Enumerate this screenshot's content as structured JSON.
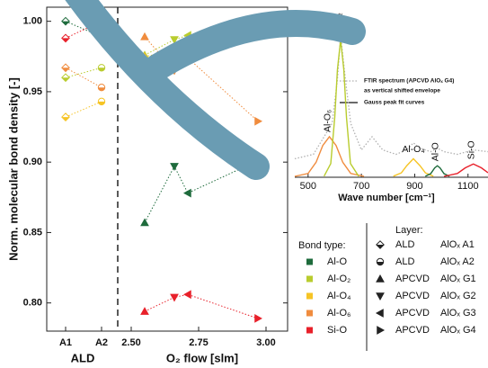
{
  "chart_data": [
    {
      "type": "scatter",
      "ylabel": "Norm. molecular bond density [-]",
      "xlabel": "ALD",
      "categories": [
        "A1",
        "A2"
      ],
      "markers": [
        "diamond-half",
        "circle-half"
      ],
      "ylim": [
        0.78,
        1.01
      ],
      "yticks": [
        {
          "value": 1,
          "label": "1.00"
        },
        0.95,
        {
          "value": 0.9,
          "label": "0.90"
        },
        0.85,
        {
          "value": 0.8,
          "label": "0.80"
        }
      ],
      "series": [
        {
          "name": "Al-O",
          "color": "#1e6b3c",
          "values": [
            1.0,
            0.989
          ]
        },
        {
          "name": "Al-O₂",
          "color": "#b9cc2e",
          "values": [
            0.96,
            0.967
          ]
        },
        {
          "name": "Al-O₄",
          "color": "#f6c425",
          "values": [
            0.932,
            0.943
          ]
        },
        {
          "name": "Al-O₆",
          "color": "#f08c3e",
          "values": [
            0.967,
            0.953
          ]
        },
        {
          "name": "Si-O",
          "color": "#e8202a",
          "values": [
            0.988,
            1.0
          ]
        }
      ]
    },
    {
      "type": "scatter",
      "xlabel": "O₂ flow [slm]",
      "x": [
        2.55,
        2.66,
        2.71,
        2.97
      ],
      "markers": [
        "triangle-up",
        "triangle-down",
        "triangle-left",
        "triangle-right"
      ],
      "xlim": [
        2.45,
        3.08
      ],
      "xticks": [
        {
          "value": 2.5,
          "label": "2.50"
        },
        2.75,
        {
          "value": 3,
          "label": "3.00"
        }
      ],
      "ylim": [
        0.78,
        1.01
      ],
      "series": [
        {
          "color": "#1e6b3c",
          "values": [
            0.857,
            0.897,
            0.878,
            0.901
          ]
        },
        {
          "color": "#b9cc2e",
          "values": [
            0.976,
            0.987,
            0.99,
            0.995
          ]
        },
        {
          "color": "#f6c425",
          "values": [
            0.975,
            0.979,
            0.982,
            0.992
          ]
        },
        {
          "color": "#f08c3e",
          "values": [
            0.989,
            0.965,
            0.974,
            0.929
          ]
        },
        {
          "color": "#e8202a",
          "values": [
            0.794,
            0.804,
            0.806,
            0.789
          ]
        }
      ]
    },
    {
      "type": "line",
      "xlabel": "Wave number [cm⁻¹]",
      "xlim": [
        450,
        1175
      ],
      "xticks": [
        500,
        700,
        900,
        1100
      ],
      "ylim": [
        0,
        190
      ],
      "envelope": {
        "label": [
          "FTIR spectrum (APCVD AlOₓ G4)",
          "as vertical shifted envelope"
        ],
        "color": "#b0b0b0",
        "x": [
          450,
          520,
          560,
          590,
          610,
          622,
          640,
          660,
          700,
          740,
          780,
          830,
          870,
          895,
          920,
          960,
          985,
          1010,
          1060,
          1120,
          1175
        ],
        "values": [
          20,
          25,
          45,
          60,
          110,
          160,
          110,
          60,
          30,
          45,
          30,
          25,
          30,
          38,
          32,
          28,
          32,
          28,
          25,
          30,
          28
        ]
      },
      "fit_label": "Gauss peak fit curves",
      "series": [
        {
          "name": "Al-O₆",
          "color": "#f08c3e",
          "orientation": "vertical",
          "x": [
            450,
            500,
            530,
            555,
            580,
            605,
            630,
            660,
            710
          ],
          "values": [
            0,
            3.3,
            16,
            35,
            45,
            35,
            16,
            3.3,
            0
          ]
        },
        {
          "name": "Al-O₂",
          "color": "#b9cc2e",
          "orientation": "vertical",
          "x": [
            560,
            585,
            600,
            610,
            622,
            634,
            644,
            659,
            690
          ],
          "values": [
            0.2,
            14.5,
            67,
            121,
            155,
            121,
            67,
            14.5,
            0
          ]
        },
        {
          "name": "Al-O₄",
          "color": "#f6c425",
          "orientation": "horizontal",
          "x": [
            820,
            850,
            870,
            895,
            920,
            940,
            970
          ],
          "values": [
            0.2,
            4,
            12,
            20,
            12,
            4,
            0.2
          ]
        },
        {
          "name": "Al-O",
          "color": "#1e6b3c",
          "orientation": "vertical",
          "x": [
            940,
            960,
            975,
            985,
            995,
            1010,
            1030
          ],
          "values": [
            0.1,
            3,
            9.6,
            12,
            9.6,
            3,
            0.1
          ]
        },
        {
          "name": "Si-O",
          "color": "#e8202a",
          "orientation": "vertical",
          "x": [
            1010,
            1060,
            1090,
            1120,
            1150,
            1175
          ],
          "values": [
            0,
            3.2,
            9.7,
            14,
            9.7,
            4.1
          ]
        }
      ]
    }
  ],
  "legend": {
    "bond_type_title": "Bond type:",
    "layer_title": "Layer:",
    "layers": [
      {
        "marker": "diamond-half",
        "process": "ALD",
        "name": "AlOₓ A1"
      },
      {
        "marker": "circle-half",
        "process": "ALD",
        "name": "AlOₓ A2"
      },
      {
        "marker": "triangle-up",
        "process": "APCVD",
        "name": "AlOₓ G1"
      },
      {
        "marker": "triangle-down",
        "process": "APCVD",
        "name": "AlOₓ G2"
      },
      {
        "marker": "triangle-left",
        "process": "APCVD",
        "name": "AlOₓ G3"
      },
      {
        "marker": "triangle-right",
        "process": "APCVD",
        "name": "AlOₓ G4"
      }
    ]
  }
}
